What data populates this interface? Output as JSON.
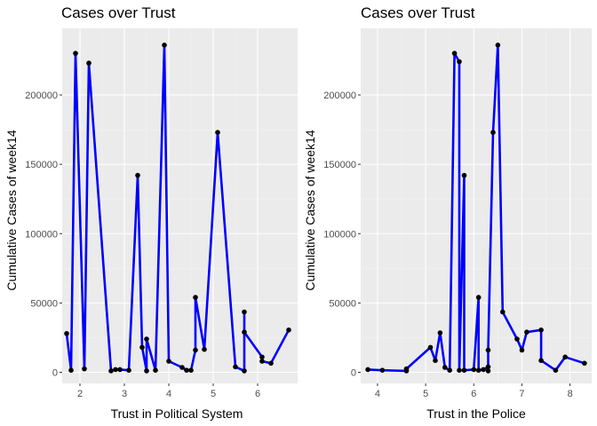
{
  "colors": {
    "panel_background": "#ebebeb",
    "grid_major": "#ffffff",
    "grid_minor": "#f2f2f2",
    "line": "#0000ff",
    "point": "#000000",
    "tick_text": "#4d4d4d"
  },
  "chart_data": [
    {
      "type": "line",
      "title": "Cases over Trust",
      "xlabel": "Trust in Political System",
      "ylabel": "Cumulative Cases of week14",
      "xlim": [
        1.6,
        6.9
      ],
      "ylim": [
        -8000,
        248000
      ],
      "xticks": [
        2,
        3,
        4,
        5,
        6
      ],
      "xtick_labels": [
        "2",
        "3",
        "4",
        "5",
        "6"
      ],
      "yticks": [
        0,
        50000,
        100000,
        150000,
        200000
      ],
      "ytick_labels": [
        "0",
        "50000",
        "100000",
        "150000",
        "200000"
      ],
      "grid": true,
      "points_marked": true,
      "series": [
        {
          "x": [
            1.7,
            1.8,
            1.9,
            2.1,
            2.2,
            2.7,
            2.8,
            2.9,
            3.1,
            3.3,
            3.4,
            3.5,
            3.5,
            3.7,
            3.9,
            4.0,
            4.3,
            4.4,
            4.5,
            4.6,
            4.6,
            4.8,
            5.1,
            5.5,
            5.7,
            5.7,
            5.7,
            6.1,
            6.1,
            6.3,
            6.7
          ],
          "y": [
            28000,
            1500,
            230000,
            2500,
            223000,
            1000,
            2000,
            2000,
            1500,
            142000,
            18000,
            1000,
            24000,
            1500,
            236000,
            8000,
            3500,
            1500,
            1500,
            16000,
            54000,
            16500,
            173000,
            4000,
            1000,
            43500,
            29000,
            11000,
            8000,
            6500,
            30500
          ]
        }
      ]
    },
    {
      "type": "line",
      "title": "Cases over Trust",
      "xlabel": "Trust in the Police",
      "ylabel": "Cumulative Cases of week14",
      "xlim": [
        3.65,
        8.45
      ],
      "ylim": [
        -8000,
        248000
      ],
      "xticks": [
        4,
        5,
        6,
        7,
        8
      ],
      "xtick_labels": [
        "4",
        "5",
        "6",
        "7",
        "8"
      ],
      "yticks": [
        0,
        50000,
        100000,
        150000,
        200000
      ],
      "ytick_labels": [
        "0",
        "50000",
        "100000",
        "150000",
        "200000"
      ],
      "grid": true,
      "points_marked": true,
      "series": [
        {
          "x": [
            3.8,
            4.1,
            4.6,
            4.6,
            5.1,
            5.2,
            5.3,
            5.4,
            5.5,
            5.6,
            5.7,
            5.7,
            5.8,
            5.8,
            6.0,
            6.1,
            6.1,
            6.2,
            6.3,
            6.3,
            6.3,
            6.4,
            6.5,
            6.6,
            6.9,
            7.0,
            7.1,
            7.4,
            7.4,
            7.7,
            7.9,
            8.3
          ],
          "y": [
            2000,
            1500,
            1000,
            2500,
            18000,
            8500,
            28500,
            3500,
            1500,
            230000,
            224000,
            1500,
            142000,
            1500,
            2000,
            54000,
            1500,
            2000,
            4000,
            1000,
            16000,
            173000,
            236000,
            43500,
            24000,
            16000,
            29000,
            30500,
            8500,
            1500,
            11000,
            6500
          ]
        }
      ]
    }
  ]
}
